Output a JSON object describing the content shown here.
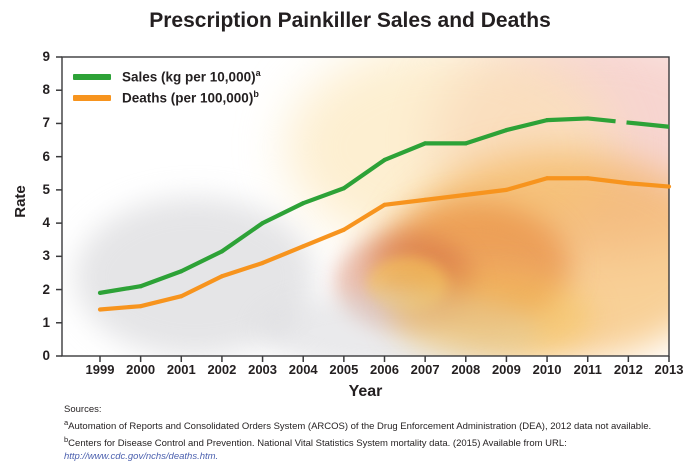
{
  "title": "Prescription Painkiller Sales and Deaths",
  "legend": [
    {
      "label": "Sales (kg per 10,000)",
      "sup": "a"
    },
    {
      "label": "Deaths (per 100,000)",
      "sup": "b"
    }
  ],
  "axes": {
    "x_label": "Year",
    "y_label": "Rate"
  },
  "footnotes": {
    "heading": "Sources:",
    "items": [
      {
        "sup": "a",
        "text": "Automation of Reports and Consolidated Orders System (ARCOS) of the Drug Enforcement Administration (DEA), 2012 data not available."
      },
      {
        "sup": "b",
        "text": "Centers for Disease Control and Prevention. National Vital Statistics System mortality data. (2015) Available from URL:"
      }
    ],
    "link": "http://www.cdc.gov/nchs/deaths.htm."
  },
  "colors": {
    "sales_line": "#2da237",
    "deaths_line": "#f7941e",
    "axis": "#3a3a3c",
    "text": "#231f20",
    "link": "#4a5fae"
  },
  "chart_data": {
    "type": "line",
    "title": "Prescription Painkiller Sales and Deaths",
    "xlabel": "Year",
    "ylabel": "Rate",
    "ylim": [
      0,
      9
    ],
    "yticks": [
      0,
      1,
      2,
      3,
      4,
      5,
      6,
      7,
      8,
      9
    ],
    "grid": false,
    "legend_position": "top-left",
    "categories": [
      "1999",
      "2000",
      "2001",
      "2002",
      "2003",
      "2004",
      "2005",
      "2006",
      "2007",
      "2008",
      "2009",
      "2010",
      "2011",
      "2012",
      "2013"
    ],
    "series": [
      {
        "name": "Sales (kg per 10,000)",
        "sup": "a",
        "color": "#2da237",
        "values": [
          1.9,
          2.1,
          2.55,
          3.15,
          4.0,
          4.6,
          5.05,
          5.9,
          6.4,
          6.4,
          6.8,
          7.1,
          7.15,
          null,
          6.9
        ],
        "note": "2012 value missing; segment 2011-2013 drawn dashed"
      },
      {
        "name": "Deaths (per 100,000)",
        "sup": "b",
        "color": "#f7941e",
        "values": [
          1.4,
          1.5,
          1.8,
          2.4,
          2.8,
          3.3,
          3.8,
          4.55,
          4.7,
          4.85,
          5.0,
          5.35,
          5.35,
          5.2,
          5.1
        ]
      }
    ]
  }
}
